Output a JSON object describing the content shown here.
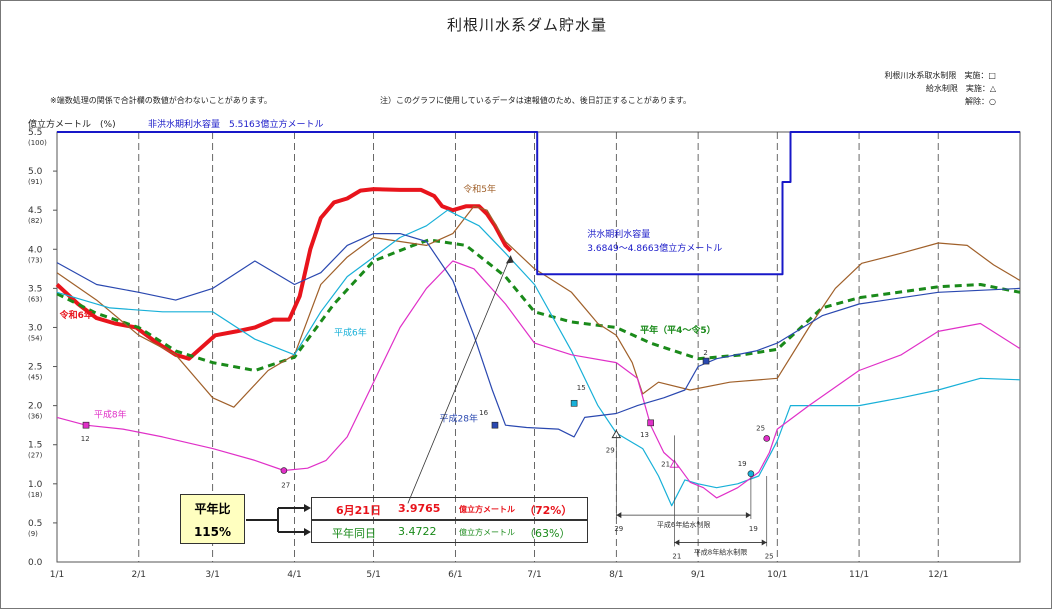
{
  "chart_data": {
    "type": "line",
    "title": "利根川水系ダム貯水量",
    "notes": {
      "left": "※端数処理の関係で合計欄の数値が合わないことがあります。",
      "right": "注）このグラフに使用しているデータは速報値のため、後日訂正することがあります。"
    },
    "legend_marks": [
      "利根川水系取水制限　実施：□",
      "給水制限　実施：△",
      "解除：○"
    ],
    "y_axis_label": "億立方メートル　(%)",
    "capacity_label": "非洪水期利水容量　5.5163億立方メートル",
    "ylim": [
      0,
      5.5
    ],
    "y_ticks": [
      {
        "v": 0.0,
        "l": "0.0",
        "p": ""
      },
      {
        "v": 0.5,
        "l": "0.5",
        "p": "(9)"
      },
      {
        "v": 1.0,
        "l": "1.0",
        "p": "(18)"
      },
      {
        "v": 1.5,
        "l": "1.5",
        "p": "(27)"
      },
      {
        "v": 2.0,
        "l": "2.0",
        "p": "(36)"
      },
      {
        "v": 2.5,
        "l": "2.5",
        "p": "(45)"
      },
      {
        "v": 3.0,
        "l": "3.0",
        "p": "(54)"
      },
      {
        "v": 3.5,
        "l": "3.5",
        "p": "(63)"
      },
      {
        "v": 4.0,
        "l": "4.0",
        "p": "(73)"
      },
      {
        "v": 4.5,
        "l": "4.5",
        "p": "(82)"
      },
      {
        "v": 5.0,
        "l": "5.0",
        "p": "(91)"
      },
      {
        "v": 5.5,
        "l": "5.5",
        "p": "(100)"
      }
    ],
    "x_ticks": [
      {
        "d": 0,
        "l": "1/1"
      },
      {
        "d": 31,
        "l": "2/1"
      },
      {
        "d": 59,
        "l": "3/1"
      },
      {
        "d": 90,
        "l": "4/1"
      },
      {
        "d": 120,
        "l": "5/1"
      },
      {
        "d": 151,
        "l": "6/1"
      },
      {
        "d": 181,
        "l": "7/1"
      },
      {
        "d": 212,
        "l": "8/1"
      },
      {
        "d": 243,
        "l": "9/1"
      },
      {
        "d": 273,
        "l": "10/1"
      },
      {
        "d": 304,
        "l": "11/1"
      },
      {
        "d": 334,
        "l": "12/1"
      }
    ],
    "xlim": [
      0,
      365
    ],
    "series": [
      {
        "name": "令和6年",
        "color": "#e8141c",
        "width": 4,
        "dash": "",
        "points": [
          [
            0,
            3.55
          ],
          [
            8,
            3.3
          ],
          [
            15,
            3.12
          ],
          [
            22,
            3.05
          ],
          [
            30,
            3.0
          ],
          [
            38,
            2.8
          ],
          [
            45,
            2.65
          ],
          [
            50,
            2.6
          ],
          [
            55,
            2.75
          ],
          [
            60,
            2.9
          ],
          [
            68,
            2.95
          ],
          [
            75,
            3.0
          ],
          [
            82,
            3.1
          ],
          [
            88,
            3.1
          ],
          [
            92,
            3.4
          ],
          [
            96,
            4.0
          ],
          [
            100,
            4.4
          ],
          [
            105,
            4.6
          ],
          [
            110,
            4.65
          ],
          [
            115,
            4.75
          ],
          [
            120,
            4.77
          ],
          [
            130,
            4.76
          ],
          [
            138,
            4.76
          ],
          [
            143,
            4.68
          ],
          [
            146,
            4.55
          ],
          [
            150,
            4.5
          ],
          [
            155,
            4.55
          ],
          [
            160,
            4.55
          ],
          [
            163,
            4.45
          ],
          [
            166,
            4.3
          ],
          [
            170,
            4.05
          ],
          [
            172,
            3.98
          ]
        ]
      },
      {
        "name": "平年（平4～令5）",
        "color": "#1a8a1a",
        "width": 3,
        "dash": "7,5",
        "points": [
          [
            0,
            3.43
          ],
          [
            15,
            3.18
          ],
          [
            31,
            3.0
          ],
          [
            45,
            2.7
          ],
          [
            59,
            2.55
          ],
          [
            75,
            2.45
          ],
          [
            90,
            2.62
          ],
          [
            105,
            3.3
          ],
          [
            120,
            3.85
          ],
          [
            135,
            4.05
          ],
          [
            141,
            4.12
          ],
          [
            155,
            4.05
          ],
          [
            170,
            3.65
          ],
          [
            181,
            3.2
          ],
          [
            195,
            3.07
          ],
          [
            212,
            3.0
          ],
          [
            225,
            2.8
          ],
          [
            243,
            2.6
          ],
          [
            260,
            2.65
          ],
          [
            273,
            2.72
          ],
          [
            290,
            3.25
          ],
          [
            304,
            3.38
          ],
          [
            334,
            3.52
          ],
          [
            350,
            3.55
          ],
          [
            365,
            3.45
          ]
        ]
      },
      {
        "name": "令和5年",
        "color": "#a0602a",
        "width": 1.2,
        "dash": "",
        "points": [
          [
            0,
            3.7
          ],
          [
            15,
            3.35
          ],
          [
            31,
            2.9
          ],
          [
            45,
            2.65
          ],
          [
            59,
            2.1
          ],
          [
            67,
            1.98
          ],
          [
            80,
            2.45
          ],
          [
            90,
            2.65
          ],
          [
            100,
            3.55
          ],
          [
            110,
            3.9
          ],
          [
            120,
            4.15
          ],
          [
            130,
            4.1
          ],
          [
            140,
            4.05
          ],
          [
            150,
            4.2
          ],
          [
            158,
            4.55
          ],
          [
            163,
            4.5
          ],
          [
            170,
            4.1
          ],
          [
            181,
            3.75
          ],
          [
            195,
            3.45
          ],
          [
            205,
            3.05
          ],
          [
            212,
            2.9
          ],
          [
            218,
            2.55
          ],
          [
            222,
            2.15
          ],
          [
            228,
            2.3
          ],
          [
            240,
            2.2
          ],
          [
            255,
            2.3
          ],
          [
            273,
            2.35
          ],
          [
            285,
            3.0
          ],
          [
            295,
            3.5
          ],
          [
            305,
            3.82
          ],
          [
            320,
            3.95
          ],
          [
            334,
            4.08
          ],
          [
            345,
            4.05
          ],
          [
            355,
            3.8
          ],
          [
            365,
            3.6
          ]
        ]
      },
      {
        "name": "平成6年",
        "color": "#18b0d8",
        "width": 1.2,
        "dash": "",
        "points": [
          [
            0,
            3.45
          ],
          [
            20,
            3.25
          ],
          [
            40,
            3.2
          ],
          [
            59,
            3.2
          ],
          [
            75,
            2.85
          ],
          [
            90,
            2.65
          ],
          [
            100,
            3.2
          ],
          [
            110,
            3.65
          ],
          [
            120,
            3.9
          ],
          [
            130,
            4.15
          ],
          [
            140,
            4.3
          ],
          [
            148,
            4.5
          ],
          [
            160,
            4.3
          ],
          [
            170,
            3.95
          ],
          [
            181,
            3.55
          ],
          [
            195,
            2.7
          ],
          [
            205,
            2.0
          ],
          [
            212,
            1.65
          ],
          [
            222,
            1.45
          ],
          [
            228,
            1.1
          ],
          [
            233,
            0.72
          ],
          [
            238,
            1.05
          ],
          [
            243,
            1.0
          ],
          [
            250,
            0.95
          ],
          [
            258,
            1.0
          ],
          [
            266,
            1.1
          ],
          [
            273,
            1.55
          ],
          [
            278,
            2.0
          ],
          [
            290,
            2.0
          ],
          [
            304,
            2.0
          ],
          [
            320,
            2.1
          ],
          [
            334,
            2.2
          ],
          [
            350,
            2.35
          ],
          [
            365,
            2.33
          ]
        ]
      },
      {
        "name": "平成8年",
        "color": "#e030c8",
        "width": 1.2,
        "dash": "",
        "points": [
          [
            0,
            1.85
          ],
          [
            11,
            1.75
          ],
          [
            25,
            1.7
          ],
          [
            40,
            1.6
          ],
          [
            59,
            1.45
          ],
          [
            75,
            1.3
          ],
          [
            86,
            1.17
          ],
          [
            95,
            1.2
          ],
          [
            102,
            1.3
          ],
          [
            110,
            1.6
          ],
          [
            120,
            2.3
          ],
          [
            130,
            3.0
          ],
          [
            140,
            3.5
          ],
          [
            150,
            3.85
          ],
          [
            158,
            3.75
          ],
          [
            170,
            3.3
          ],
          [
            181,
            2.8
          ],
          [
            195,
            2.65
          ],
          [
            212,
            2.55
          ],
          [
            220,
            2.35
          ],
          [
            225,
            1.75
          ],
          [
            230,
            1.4
          ],
          [
            235,
            1.25
          ],
          [
            240,
            1.02
          ],
          [
            245,
            0.95
          ],
          [
            250,
            0.82
          ],
          [
            258,
            0.95
          ],
          [
            266,
            1.15
          ],
          [
            270,
            1.4
          ],
          [
            273,
            1.7
          ],
          [
            285,
            2.0
          ],
          [
            304,
            2.45
          ],
          [
            320,
            2.65
          ],
          [
            334,
            2.95
          ],
          [
            350,
            3.05
          ],
          [
            365,
            2.73
          ]
        ]
      },
      {
        "name": "平成28年",
        "color": "#2a48b0",
        "width": 1.2,
        "dash": "",
        "points": [
          [
            0,
            3.83
          ],
          [
            15,
            3.55
          ],
          [
            31,
            3.45
          ],
          [
            45,
            3.35
          ],
          [
            59,
            3.5
          ],
          [
            75,
            3.85
          ],
          [
            90,
            3.55
          ],
          [
            100,
            3.7
          ],
          [
            110,
            4.05
          ],
          [
            120,
            4.2
          ],
          [
            130,
            4.2
          ],
          [
            140,
            4.1
          ],
          [
            150,
            3.6
          ],
          [
            158,
            2.9
          ],
          [
            165,
            2.2
          ],
          [
            170,
            1.75
          ],
          [
            178,
            1.72
          ],
          [
            190,
            1.7
          ],
          [
            196,
            1.6
          ],
          [
            200,
            1.85
          ],
          [
            212,
            1.9
          ],
          [
            220,
            2.0
          ],
          [
            230,
            2.1
          ],
          [
            238,
            2.2
          ],
          [
            243,
            2.5
          ],
          [
            250,
            2.6
          ],
          [
            265,
            2.7
          ],
          [
            273,
            2.8
          ],
          [
            290,
            3.15
          ],
          [
            304,
            3.3
          ],
          [
            334,
            3.45
          ],
          [
            365,
            3.5
          ]
        ]
      },
      {
        "name": "洪水期利水容量",
        "color": "#1818c8",
        "width": 2,
        "dash": "",
        "step": true,
        "points": [
          [
            0,
            5.5
          ],
          [
            182,
            5.5
          ],
          [
            182,
            3.68
          ],
          [
            275,
            3.68
          ],
          [
            275,
            4.86
          ],
          [
            278,
            4.86
          ],
          [
            278,
            5.5
          ],
          [
            365,
            5.5
          ]
        ]
      }
    ],
    "annotations": [
      {
        "text": "令和6年",
        "d": 1,
        "v": 3.12,
        "color": "#e8141c",
        "bold": true
      },
      {
        "text": "令和5年",
        "d": 154,
        "v": 4.73,
        "color": "#a0602a"
      },
      {
        "text": "平成6年",
        "d": 105,
        "v": 2.9,
        "color": "#18b0d8"
      },
      {
        "text": "平成8年",
        "d": 14,
        "v": 1.85,
        "color": "#e030c8"
      },
      {
        "text": "平成28年",
        "d": 145,
        "v": 1.8,
        "color": "#2a48b0"
      },
      {
        "text": "平年（平4～令5）",
        "d": 221,
        "v": 2.93,
        "color": "#1a8a1a",
        "bold": true
      },
      {
        "text": "洪水期利水容量",
        "d": 201,
        "v": 4.16,
        "color": "#1818c8"
      },
      {
        "text": "3.6849～4.8663億立方メートル",
        "d": 201,
        "v": 3.98,
        "color": "#1818c8"
      }
    ],
    "markers": [
      {
        "type": "square",
        "d": 11,
        "v": 1.75,
        "color": "#e030c8",
        "label": "12",
        "ld": 9,
        "lv": 1.55
      },
      {
        "type": "circle",
        "d": 86,
        "v": 1.17,
        "color": "#e030c8",
        "label": "27",
        "ld": 85,
        "lv": 0.95
      },
      {
        "type": "square",
        "d": 166,
        "v": 1.75,
        "color": "#2a48b0",
        "label": "16",
        "ld": 160,
        "lv": 1.88
      },
      {
        "type": "square",
        "d": 196,
        "v": 2.03,
        "color": "#18b0d8",
        "label": "15",
        "ld": 197,
        "lv": 2.2
      },
      {
        "type": "triangle",
        "d": 212,
        "v": 1.63,
        "color": "#333333",
        "label": "29",
        "ld": 208,
        "lv": 1.4
      },
      {
        "type": "square",
        "d": 225,
        "v": 1.78,
        "color": "#e030c8",
        "label": "13",
        "ld": 221,
        "lv": 1.6
      },
      {
        "type": "triangle",
        "d": 234,
        "v": 1.25,
        "color": "#e030c8",
        "label": "21",
        "ld": 229,
        "lv": 1.22
      },
      {
        "type": "square",
        "d": 246,
        "v": 2.57,
        "color": "#2a48b0",
        "label": "2",
        "ld": 245,
        "lv": 2.65
      },
      {
        "type": "circle",
        "d": 263,
        "v": 1.13,
        "color": "#18b0d8",
        "label": "19",
        "ld": 258,
        "lv": 1.23
      },
      {
        "type": "circle",
        "d": 269,
        "v": 1.58,
        "color": "#e030c8",
        "label": "25",
        "ld": 265,
        "lv": 1.68
      }
    ],
    "restriction_bands": [
      {
        "label": "平成6年給水制限",
        "start": 212,
        "end": 263,
        "v": 0.6,
        "start_label": "29",
        "end_label": "19",
        "color": "#18b0d8"
      },
      {
        "label": "平成8年給水制限",
        "start": 234,
        "end": 269,
        "v": 0.25,
        "start_label": "21",
        "end_label": "25",
        "color": "#e030c8"
      }
    ],
    "callout": {
      "ratio_title": "平年比",
      "ratio_value": "115%",
      "row1_date": "6月21日",
      "row1_value": "3.9765",
      "row1_unit": "億立方メートル",
      "row1_pct": "（72%）",
      "row2_date": "平年同日",
      "row2_value": "3.4722",
      "row2_unit": "億立方メートル",
      "row2_pct": "（63%）"
    }
  }
}
